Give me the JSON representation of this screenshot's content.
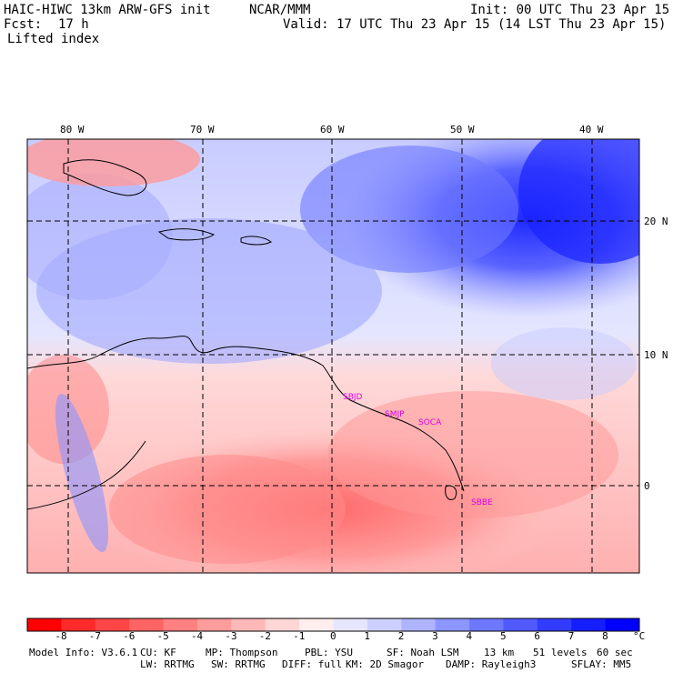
{
  "header": {
    "model_title": "HAIC-HIWC 13km ARW-GFS init",
    "org": "NCAR/MMM",
    "init": "Init: 00 UTC Thu 23 Apr 15",
    "fcst_label": "Fcst:",
    "fcst_value": "17 h",
    "valid": "Valid: 17 UTC Thu 23 Apr 15 (14 LST Thu 23 Apr 15)",
    "field": "Lifted index"
  },
  "map": {
    "lon_labels": [
      "80 W",
      "70 W",
      "60 W",
      "50 W",
      "40 W"
    ],
    "lat_labels": [
      "20 N",
      "10 N",
      "0"
    ],
    "stations": [
      "SBJD",
      "SMJP",
      "SOCA",
      "SBBE"
    ],
    "palette": {
      "neg8": "#ff0000",
      "neg7": "#ff2a2a",
      "neg6": "#ff4646",
      "neg5": "#ff6464",
      "neg4": "#ff8080",
      "neg3": "#ff9c9c",
      "neg2": "#ffb8b8",
      "neg1": "#ffd6d6",
      "zero": "#ffeeee",
      "pos1": "#e6e6ff",
      "pos2": "#cdd0ff",
      "pos3": "#aeb4ff",
      "pos4": "#8c96ff",
      "pos5": "#6e78ff",
      "pos6": "#505aff",
      "pos7": "#323cff",
      "pos8": "#141eff",
      "max": "#0000ff"
    }
  },
  "colorbar": {
    "ticks": [
      "-8",
      "-7",
      "-6",
      "-5",
      "-4",
      "-3",
      "-2",
      "-1",
      "0",
      "1",
      "2",
      "3",
      "4",
      "5",
      "6",
      "7",
      "8"
    ],
    "unit": "°C"
  },
  "footer": {
    "line1": [
      "Model Info: V3.6.1",
      "CU: KF",
      "MP: Thompson",
      "PBL: YSU",
      "SF: Noah LSM",
      "13 km",
      "51 levels",
      "60 sec"
    ],
    "line2": [
      "LW: RRTMG",
      "SW: RRTMG",
      "DIFF: full",
      "KM: 2D Smagor",
      "DAMP: Rayleigh3",
      "SFLAY: MM5"
    ]
  }
}
